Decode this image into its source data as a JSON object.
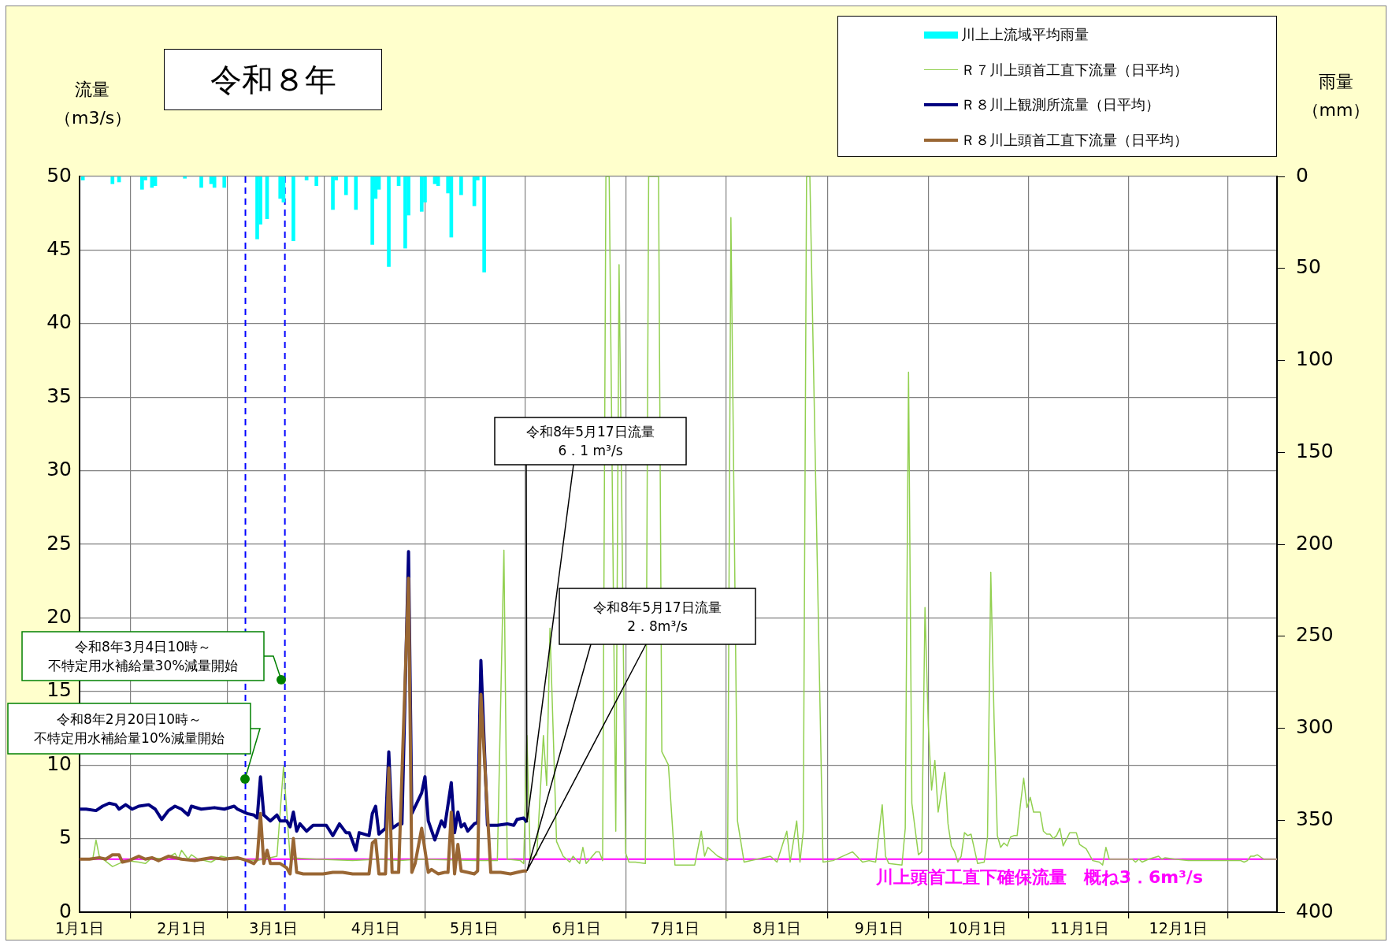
{
  "chart_data": {
    "type": "line",
    "title": "令和８年",
    "ylabel": "流量（m3/s）",
    "y2label": "雨量（mm）",
    "legend": "top right",
    "grid": true,
    "marker": "none",
    "xlim": [
      "--01-01",
      "--12-31"
    ],
    "xticks": [
      {
        "value": "--01-01",
        "label": "1月1日"
      },
      {
        "value": "--02-01",
        "label": "2月1日"
      },
      {
        "value": "--03-01",
        "label": "3月1日"
      },
      {
        "value": "--04-01",
        "label": "4月1日"
      },
      {
        "value": "--05-01",
        "label": "5月1日"
      },
      {
        "value": "--06-01",
        "label": "6月1日"
      },
      {
        "value": "--07-01",
        "label": "7月1日"
      },
      {
        "value": "--08-01",
        "label": "8月1日"
      },
      {
        "value": "--09-01",
        "label": "9月1日"
      },
      {
        "value": "--10-01",
        "label": "10月1日"
      },
      {
        "value": "--11-01",
        "label": "11月1日"
      },
      {
        "value": "--12-01",
        "label": "12月1日"
      }
    ],
    "ylim": [
      0,
      50
    ],
    "yticks": [
      0,
      5,
      10,
      15,
      20,
      25,
      30,
      35,
      40,
      45,
      50
    ],
    "y2lim": [
      400,
      0
    ],
    "y2ticks": [
      0,
      50,
      100,
      150,
      200,
      250,
      300,
      350,
      400
    ],
    "series": [
      {
        "name": "川上上流域平均雨量",
        "type": "bar",
        "axis": "y2",
        "color": "#00ffff",
        "x": [
          "--01-02",
          "--01-11",
          "--01-13",
          "--01-20",
          "--01-21",
          "--01-23",
          "--01-24",
          "--02-02",
          "--02-07",
          "--02-10",
          "--02-11",
          "--02-14",
          "--02-24",
          "--02-25",
          "--02-27",
          "--03-03",
          "--03-04",
          "--03-07",
          "--03-11",
          "--03-14",
          "--03-19",
          "--03-20",
          "--03-23",
          "--03-26",
          "--03-31",
          "--04-01",
          "--04-02",
          "--04-05",
          "--04-08",
          "--04-10",
          "--04-11",
          "--04-15",
          "--04-16",
          "--04-19",
          "--04-20",
          "--04-23",
          "--04-24",
          "--04-27",
          "--05-01",
          "--05-02",
          "--05-04"
        ],
        "values": [
          2,
          4,
          3,
          7,
          2,
          6,
          5,
          1,
          6,
          4,
          6,
          6,
          34,
          26,
          23,
          12,
          14,
          35,
          2,
          5,
          18,
          2,
          10,
          18,
          37,
          12,
          7,
          49,
          5,
          39,
          21,
          19,
          14,
          4,
          5,
          9,
          33,
          10,
          16,
          2,
          52
        ]
      },
      {
        "name": "Ｒ７川上頭首工直下流量（日平均）",
        "color": "#92d050",
        "x": [
          "--01-01",
          "--01-05",
          "--01-06",
          "--01-07",
          "--01-11",
          "--01-15",
          "--01-19",
          "--01-21",
          "--01-23",
          "--01-27",
          "--01-30",
          "--01-31",
          "--02-01",
          "--02-03",
          "--02-04",
          "--02-06",
          "--02-10",
          "--02-13",
          "--02-17",
          "--02-24",
          "--03-02",
          "--03-04",
          "--03-06",
          "--03-14",
          "--03-25",
          "--04-02",
          "--04-08",
          "--04-14",
          "--05-01",
          "--05-08",
          "--05-10",
          "--05-11",
          "--05-15",
          "--05-16",
          "--05-17",
          "--05-18",
          "--05-20",
          "--05-22",
          "--05-23",
          "--05-24",
          "--05-26",
          "--05-28",
          "--05-30",
          "--05-31",
          "--06-02",
          "--06-03",
          "--06-04",
          "--06-07",
          "--06-08",
          "--06-09",
          "--06-10",
          "--06-11",
          "--06-13",
          "--06-14",
          "--06-16",
          "--06-17",
          "--06-19",
          "--06-22",
          "--06-23",
          "--06-26",
          "--06-27",
          "--06-29",
          "--07-01",
          "--07-07",
          "--07-09",
          "--07-10",
          "--07-11",
          "--07-14",
          "--07-17",
          "--07-18",
          "--07-20",
          "--07-22",
          "--07-30",
          "--08-01",
          "--08-04",
          "--08-05",
          "--08-07",
          "--08-08",
          "--08-09",
          "--08-10",
          "--08-11",
          "--08-15",
          "--08-18",
          "--08-24",
          "--08-27",
          "--08-29",
          "--08-31",
          "--09-02",
          "--09-03",
          "--09-04",
          "--09-08",
          "--09-09",
          "--09-10",
          "--09-11",
          "--09-13",
          "--09-14",
          "--09-15",
          "--09-16",
          "--09-17",
          "--09-18",
          "--09-19",
          "--09-21",
          "--09-22",
          "--09-23",
          "--09-24",
          "--09-25",
          "--09-26",
          "--09-27",
          "--09-28",
          "--09-29",
          "--09-30",
          "--10-01",
          "--10-03",
          "--10-04",
          "--10-05",
          "--10-06",
          "--10-07",
          "--10-08",
          "--10-09",
          "--10-10",
          "--10-11",
          "--10-12",
          "--10-13",
          "--10-14",
          "--10-15",
          "--10-16",
          "--10-17",
          "--10-18",
          "--10-20",
          "--10-21",
          "--10-22",
          "--10-23",
          "--10-24",
          "--10-25",
          "--10-26",
          "--10-27",
          "--10-29",
          "--10-31",
          "--11-01",
          "--11-03",
          "--11-05",
          "--11-07",
          "--11-08",
          "--11-09",
          "--11-10",
          "--11-17",
          "--11-18",
          "--11-19",
          "--11-20",
          "--11-22",
          "--11-25",
          "--11-26",
          "--11-27",
          "--11-30",
          "--12-04",
          "--12-15",
          "--12-20",
          "--12-21",
          "--12-22",
          "--12-23",
          "--12-24",
          "--12-25",
          "--12-27",
          "--12-31"
        ],
        "values": [
          3.6,
          3.6,
          4.9,
          3.8,
          3.1,
          3.5,
          3.4,
          3.3,
          3.7,
          3.6,
          4.0,
          3.6,
          4.2,
          3.6,
          3.9,
          3.6,
          3.4,
          3.8,
          3.6,
          3.5,
          3.8,
          9.9,
          3.7,
          3.6,
          3.5,
          3.6,
          3.5,
          3.6,
          3.5,
          3.5,
          24.6,
          3.6,
          3.5,
          3.3,
          12,
          3.6,
          3.9,
          12,
          8.6,
          19.3,
          4.8,
          3.8,
          3.4,
          3.8,
          3.3,
          4.4,
          3.3,
          4.1,
          4.1,
          3.5,
          50,
          50,
          5.5,
          44,
          4.0,
          3.4,
          3.4,
          3.3,
          50,
          50,
          10.9,
          10.0,
          3.2,
          3.2,
          5.5,
          3.8,
          4.4,
          3.8,
          3.5,
          47.2,
          6.2,
          3.4,
          3.8,
          3.4,
          5.5,
          3.4,
          6.2,
          3.4,
          5.5,
          50,
          50,
          3.4,
          3.5,
          4.1,
          3.4,
          3.5,
          3.4,
          7.3,
          3.8,
          3.3,
          3.2,
          5.7,
          36.7,
          7.4,
          3.9,
          4.1,
          20.7,
          12.7,
          8.3,
          10.3,
          6.8,
          9.5,
          6.0,
          4.5,
          4.1,
          3.4,
          3.8,
          5.4,
          5.2,
          5.3,
          4.3,
          3.3,
          3.4,
          5.1,
          23.1,
          13.1,
          5.2,
          4.4,
          4.7,
          4.5,
          5.1,
          5.2,
          5.2,
          7.3,
          9.1,
          7.1,
          7.8,
          6.8,
          6.8,
          5.5,
          5.3,
          5.3,
          5.0,
          5.2,
          5.7,
          4.5,
          5.4,
          5.4,
          4.6,
          4.3,
          3.5,
          3.4,
          3.2,
          4.4,
          3.6,
          3.6,
          3.4,
          3.6,
          3.4,
          3.6,
          3.8,
          3.6,
          3.7,
          3.6,
          3.5,
          3.5,
          3.5,
          3.4,
          3.5,
          3.8,
          3.8,
          3.9,
          3.6,
          3.6
        ]
      },
      {
        "name": "Ｒ８川上観測所流量（日平均）",
        "color": "#000080",
        "x": [
          "--01-01",
          "--01-03",
          "--01-06",
          "--01-08",
          "--01-10",
          "--01-12",
          "--01-13",
          "--01-15",
          "--01-17",
          "--01-19",
          "--01-22",
          "--01-24",
          "--01-26",
          "--01-28",
          "--01-30",
          "--02-01",
          "--02-03",
          "--02-04",
          "--02-07",
          "--02-11",
          "--02-14",
          "--02-17",
          "--02-18",
          "--02-21",
          "--02-23",
          "--02-24",
          "--02-25",
          "--02-26",
          "--02-28",
          "--03-02",
          "--03-03",
          "--03-05",
          "--03-06",
          "--03-07",
          "--03-08",
          "--03-09",
          "--03-11",
          "--03-13",
          "--03-17",
          "--03-19",
          "--03-21",
          "--03-23",
          "--03-24",
          "--03-26",
          "--03-27",
          "--03-30",
          "--03-31",
          "--04-01",
          "--04-02",
          "--04-03",
          "--04-04",
          "--04-05",
          "--04-06",
          "--04-08",
          "--04-09",
          "--04-11",
          "--04-12",
          "--04-15",
          "--04-16",
          "--04-17",
          "--04-19",
          "--04-21",
          "--04-22",
          "--04-24",
          "--04-25",
          "--04-26",
          "--04-27",
          "--04-28",
          "--04-29",
          "--05-01",
          "--05-02",
          "--05-03",
          "--05-05",
          "--05-08",
          "--05-11",
          "--05-13",
          "--05-14",
          "--05-16",
          "--05-17"
        ],
        "values": [
          7.0,
          7.0,
          6.9,
          7.2,
          7.4,
          7.3,
          7.0,
          7.3,
          7.0,
          7.2,
          7.3,
          7.0,
          6.3,
          6.9,
          7.2,
          7.0,
          6.6,
          7.2,
          7.0,
          7.1,
          7.0,
          7.2,
          7.0,
          6.7,
          6.6,
          6.4,
          9.2,
          6.6,
          6.2,
          6.6,
          6.2,
          6.2,
          5.8,
          6.8,
          5.5,
          6.0,
          5.5,
          5.9,
          5.9,
          5.2,
          6.0,
          5.4,
          5.4,
          4.2,
          5.4,
          5.2,
          6.7,
          7.2,
          5.3,
          5.5,
          5.7,
          10.9,
          5.7,
          6.0,
          6.0,
          24.5,
          6.7,
          8.1,
          9.2,
          6.2,
          4.9,
          6.2,
          5.8,
          8.8,
          5.4,
          6.8,
          5.8,
          6.0,
          5.5,
          6.0,
          6.1,
          17.1,
          5.9,
          5.9,
          6.0,
          5.9,
          6.3,
          6.4,
          6.1
        ]
      },
      {
        "name": "Ｒ８川上頭首工直下流量（日平均）",
        "color": "#996633",
        "x": [
          "--01-01",
          "--01-04",
          "--01-07",
          "--01-09",
          "--01-11",
          "--01-13",
          "--01-14",
          "--01-16",
          "--01-19",
          "--01-21",
          "--01-23",
          "--01-25",
          "--01-28",
          "--01-30",
          "--02-01",
          "--02-05",
          "--02-10",
          "--02-14",
          "--02-18",
          "--02-21",
          "--02-23",
          "--02-24",
          "--02-25",
          "--02-26",
          "--02-27",
          "--02-28",
          "--03-03",
          "--03-05",
          "--03-06",
          "--03-07",
          "--03-08",
          "--03-10",
          "--03-16",
          "--03-19",
          "--03-22",
          "--03-25",
          "--03-30",
          "--03-31",
          "--04-01",
          "--04-02",
          "--04-04",
          "--04-05",
          "--04-06",
          "--04-08",
          "--04-11",
          "--04-12",
          "--04-13",
          "--04-15",
          "--04-17",
          "--04-18",
          "--04-20",
          "--04-22",
          "--04-23",
          "--04-24",
          "--04-25",
          "--04-26",
          "--04-27",
          "--04-29",
          "--05-01",
          "--05-02",
          "--05-03",
          "--05-06",
          "--05-09",
          "--05-12",
          "--05-14",
          "--05-16",
          "--05-17"
        ],
        "values": [
          3.6,
          3.6,
          3.7,
          3.6,
          3.9,
          3.9,
          3.4,
          3.5,
          3.8,
          3.6,
          3.7,
          3.5,
          3.8,
          3.7,
          3.6,
          3.5,
          3.7,
          3.6,
          3.7,
          3.5,
          3.3,
          3.6,
          6.7,
          3.3,
          4.2,
          3.3,
          3.3,
          3.0,
          2.6,
          5.0,
          2.7,
          2.6,
          2.6,
          2.7,
          2.7,
          2.6,
          2.6,
          4.7,
          4.9,
          2.6,
          2.6,
          9.8,
          2.7,
          2.7,
          22.7,
          2.7,
          3.3,
          5.7,
          2.7,
          2.9,
          2.6,
          2.7,
          2.7,
          6.8,
          2.6,
          4.6,
          2.8,
          2.7,
          2.6,
          2.8,
          14.8,
          2.7,
          2.7,
          2.6,
          2.7,
          2.8,
          2.8
        ]
      }
    ],
    "ref_lines": [
      {
        "axis": "y",
        "value": 3.6,
        "label": "川上頭首工直下確保流量　概ね3．6m³/s",
        "color": "#ff00ff",
        "line_style": "solid"
      },
      {
        "axis": "x",
        "value": "--02-20T10:00",
        "color": "#0000ff",
        "line_style": "dashed"
      },
      {
        "axis": "x",
        "value": "--03-04T10:00",
        "color": "#0000ff",
        "line_style": "dashed"
      }
    ],
    "annotations": [
      "令和8年3月4日10時～",
      "不特定用水補給量30%減量開始",
      "令和8年2月20日10時～",
      "不特定用水補給量10%減量開始",
      "令和8年5月17日流量",
      "6．1 m³/s",
      "令和8年5月17日流量",
      "2．8m³/s"
    ]
  }
}
